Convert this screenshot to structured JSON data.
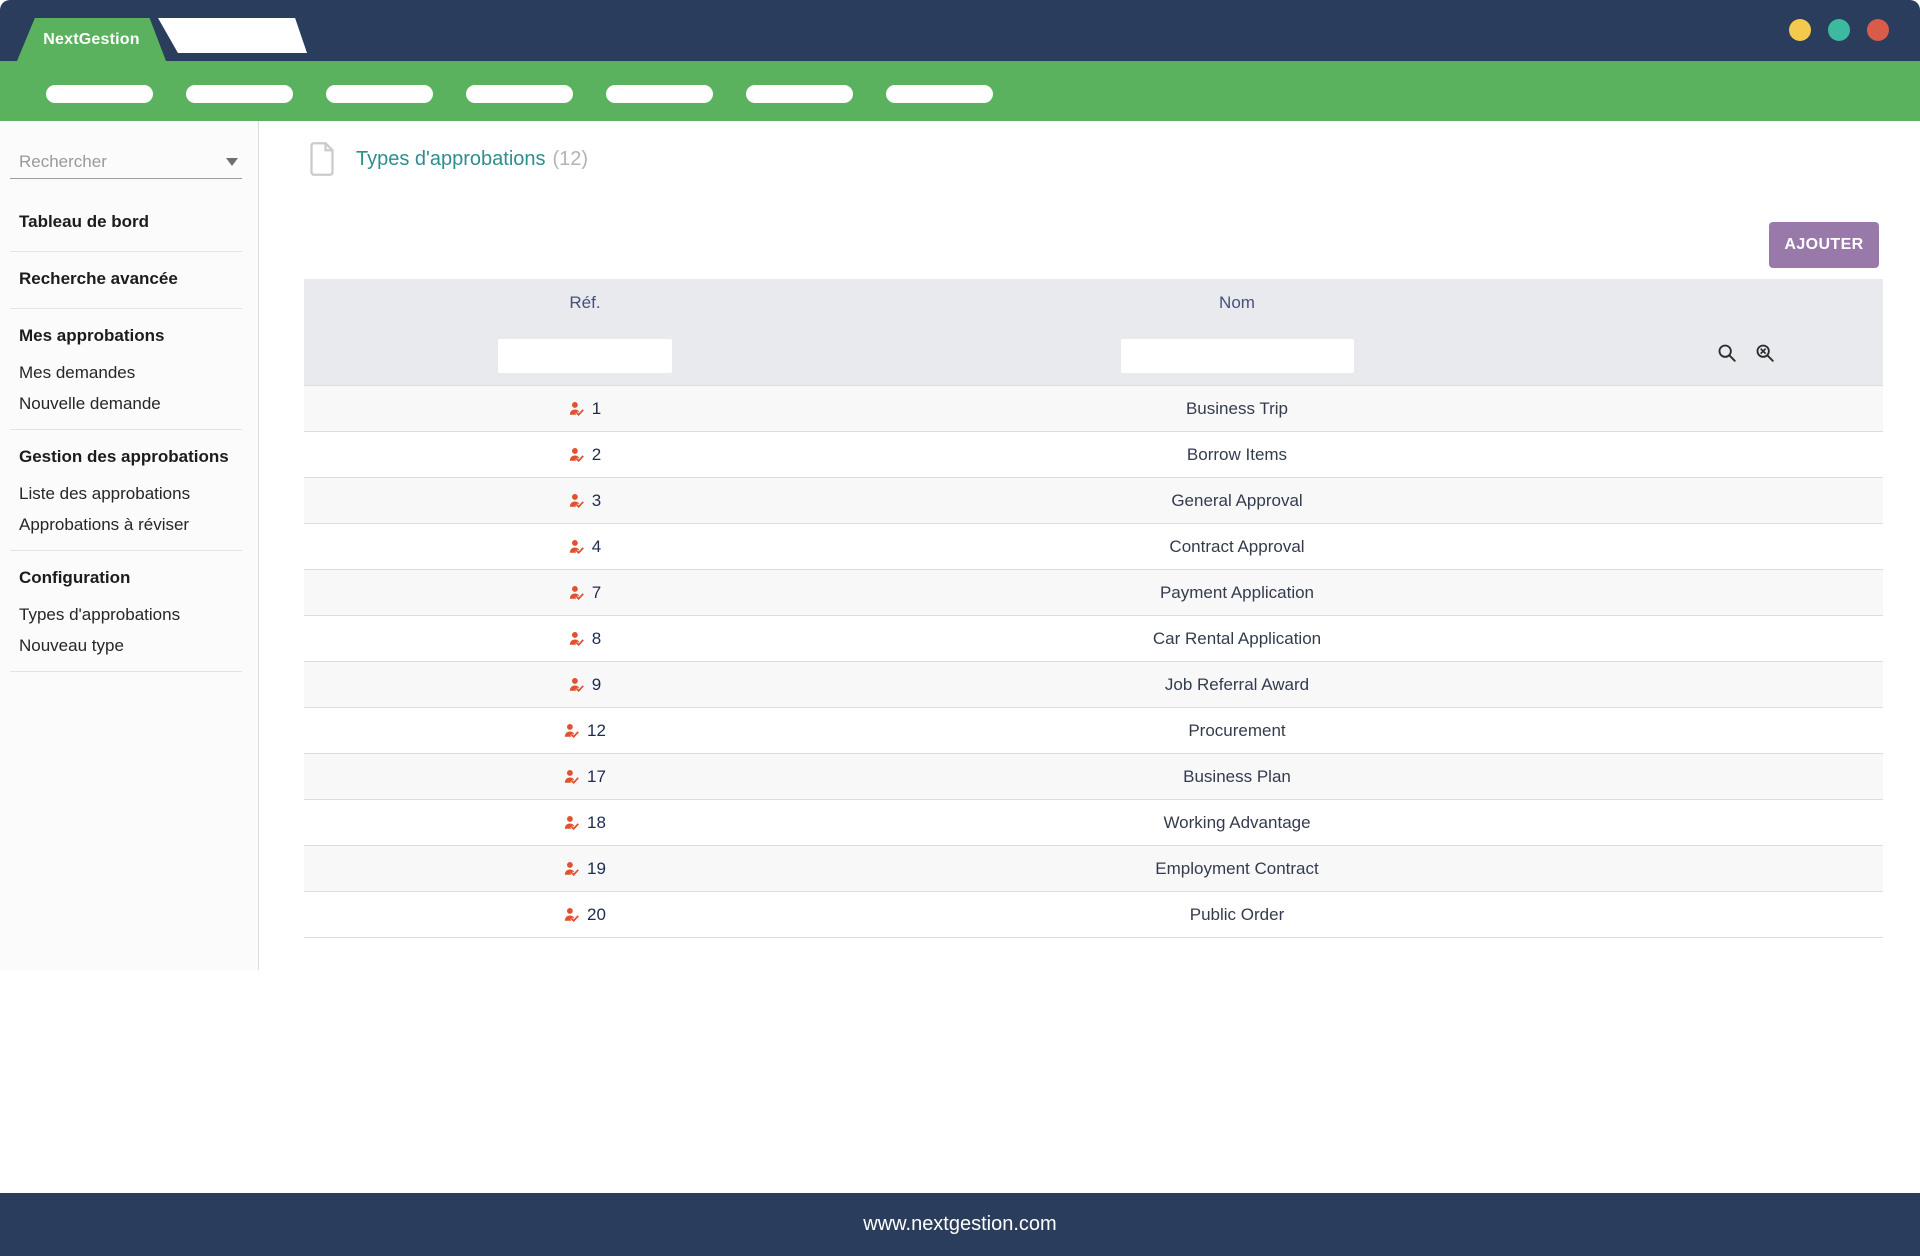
{
  "colors": {
    "navy": "#2b3d5c",
    "green": "#5ab15e",
    "purple": "#9879aa",
    "orange": "#e0512f",
    "title_teal": "#2e8d90",
    "dot_yellow": "#f3ca4e",
    "dot_teal": "#3db9a0",
    "dot_red": "#da5b49"
  },
  "header": {
    "brand": "NextGestion"
  },
  "sidebar": {
    "search_placeholder": "Rechercher",
    "groups": [
      {
        "title": "Tableau de bord",
        "items": []
      },
      {
        "title": "Recherche avancée",
        "items": []
      },
      {
        "title": "Mes approbations",
        "items": [
          "Mes demandes",
          "Nouvelle demande"
        ]
      },
      {
        "title": "Gestion des approbations",
        "items": [
          "Liste des approbations",
          "Approbations à réviser"
        ]
      },
      {
        "title": "Configuration",
        "items": [
          "Types d'approbations",
          "Nouveau type"
        ]
      }
    ]
  },
  "page": {
    "title": "Types d'approbations",
    "count": "(12)",
    "add_button_label": "AJOUTER"
  },
  "table": {
    "columns": {
      "ref": "Réf.",
      "nom": "Nom"
    },
    "filter_ref_value": "",
    "filter_nom_value": "",
    "rows": [
      {
        "ref": "1",
        "nom": "Business Trip"
      },
      {
        "ref": "2",
        "nom": "Borrow Items"
      },
      {
        "ref": "3",
        "nom": "General Approval"
      },
      {
        "ref": "4",
        "nom": "Contract Approval"
      },
      {
        "ref": "7",
        "nom": "Payment Application"
      },
      {
        "ref": "8",
        "nom": "Car Rental Application"
      },
      {
        "ref": "9",
        "nom": "Job Referral Award"
      },
      {
        "ref": "12",
        "nom": "Procurement"
      },
      {
        "ref": "17",
        "nom": "Business Plan"
      },
      {
        "ref": "18",
        "nom": "Working Advantage"
      },
      {
        "ref": "19",
        "nom": "Employment Contract"
      },
      {
        "ref": "20",
        "nom": "Public Order"
      }
    ]
  },
  "footer": {
    "url": "www.nextgestion.com"
  }
}
